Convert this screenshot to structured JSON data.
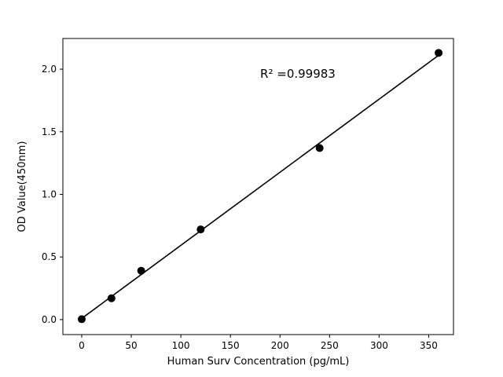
{
  "chart_data": {
    "type": "scatter",
    "title": "",
    "xlabel": "Human Surv Concentration (pg/mL)",
    "ylabel": "OD Value(450nm)",
    "x": [
      0,
      30,
      60,
      120,
      240,
      360
    ],
    "y": [
      0.003,
      0.17,
      0.39,
      0.72,
      1.37,
      2.13
    ],
    "series": [
      {
        "name": "standards",
        "type": "scatter",
        "x": [
          0,
          30,
          60,
          120,
          240,
          360
        ],
        "y": [
          0.003,
          0.17,
          0.39,
          0.72,
          1.37,
          2.13
        ]
      },
      {
        "name": "linear-fit",
        "type": "line"
      }
    ],
    "annotation": {
      "text": "R² =0.99983",
      "x": 218,
      "y": 1.93
    },
    "xlim": [
      -19,
      375
    ],
    "ylim": [
      -0.12,
      2.245
    ],
    "xticks": {
      "values": [
        0,
        50,
        100,
        150,
        200,
        250,
        300,
        350
      ],
      "labels": [
        "0",
        "50",
        "100",
        "150",
        "200",
        "250",
        "300",
        "350"
      ]
    },
    "yticks": {
      "values": [
        0.0,
        0.5,
        1.0,
        1.5,
        2.0
      ],
      "labels": [
        "0.0",
        "0.5",
        "1.0",
        "1.5",
        "2.0"
      ]
    },
    "grid": false,
    "legend": "none",
    "marker_color": "#000000",
    "line_color": "#000000",
    "background_color": "#ffffff"
  }
}
